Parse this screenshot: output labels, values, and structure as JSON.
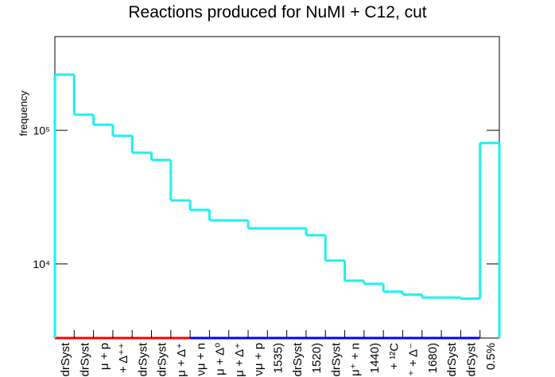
{
  "chart_data": {
    "type": "step-histogram",
    "title": "Reactions produced for NuMI + C12, cut",
    "y_label": "frequency",
    "log_y": true,
    "color": "#1ef0f0",
    "categories": [
      "drSyst",
      "drSyst",
      "μ + p",
      "+ Δ⁺⁺",
      "drSyst",
      "drSyst",
      "μ + Δ⁺",
      "νμ + n",
      "μ + Δ⁰",
      "μ + Δ⁺",
      "νμ + p",
      "1535)",
      "drSyst",
      "1520)",
      "drSyst",
      "μ⁺ + n",
      "1440)",
      "+ ¹²C",
      "⁺ + Δ⁻",
      "1680)",
      "drSyst",
      "drSyst",
      "0.5%"
    ],
    "values": [
      261000,
      131000,
      110000,
      91000,
      68000,
      60000,
      29900,
      25400,
      21200,
      21200,
      18500,
      18500,
      18500,
      16400,
      10600,
      7500,
      7100,
      6200,
      5900,
      5600,
      5600,
      5500,
      80400
    ],
    "ylim": [
      2790,
      503000
    ],
    "yticks": [
      {
        "value": 10000,
        "label": "10⁴"
      },
      {
        "value": 100000,
        "label": "10⁵"
      }
    ]
  }
}
